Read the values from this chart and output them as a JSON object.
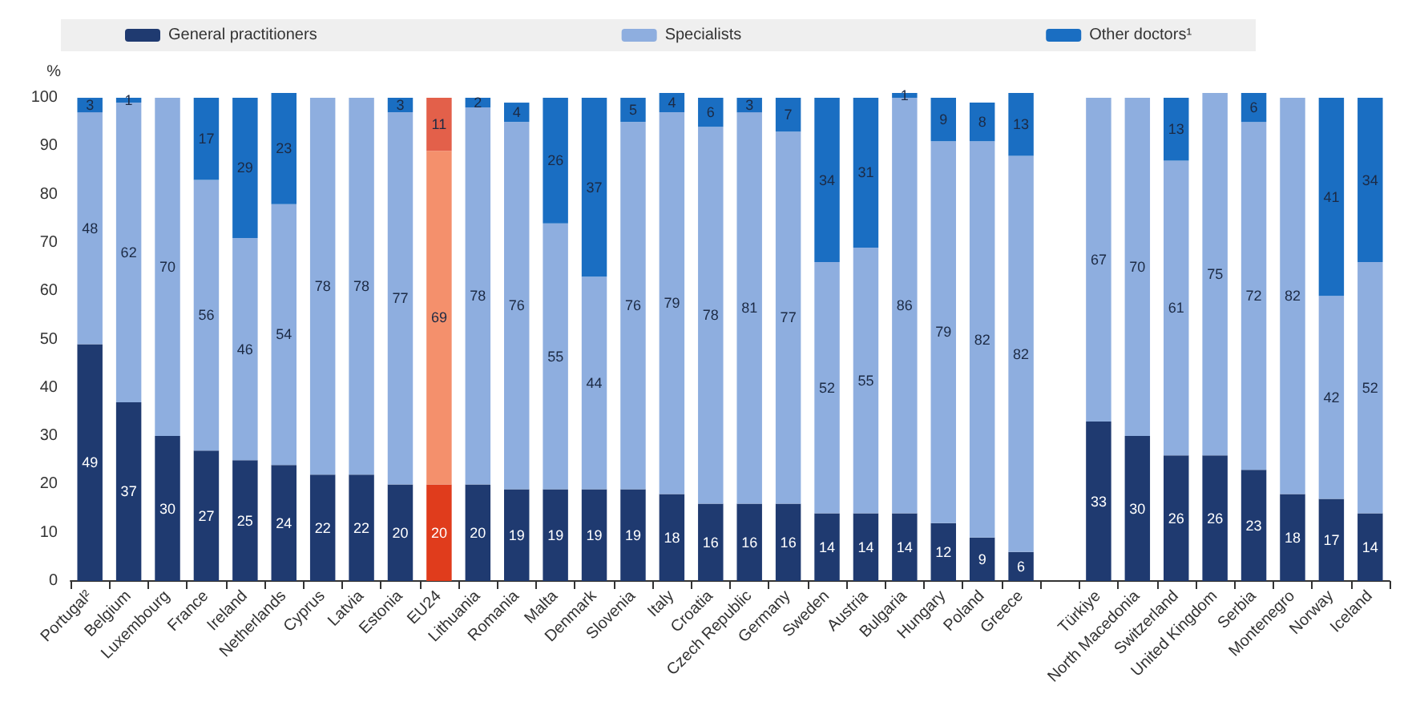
{
  "chart_data": {
    "type": "bar",
    "stacked": true,
    "ylabel": "%",
    "ylim": [
      0,
      101
    ],
    "yticks": [
      0,
      10,
      20,
      30,
      40,
      50,
      60,
      70,
      80,
      90,
      100
    ],
    "grid": false,
    "legend": "top",
    "data_labels": true,
    "categories": [
      "Portugal²",
      "Belgium",
      "Luxembourg",
      "France",
      "Ireland",
      "Netherlands",
      "Cyprus",
      "Latvia",
      "Estonia",
      "EU24",
      "Lithuania",
      "Romania",
      "Malta",
      "Denmark",
      "Slovenia",
      "Italy",
      "Croatia",
      "Czech Republic",
      "Germany",
      "Sweden",
      "Austria",
      "Bulgaria",
      "Hungary",
      "Poland",
      "Greece",
      null,
      "Türkiye",
      "North Macedonia",
      "Switzerland",
      "United Kingdom",
      "Serbia",
      "Montenegro",
      "Norway",
      "Iceland"
    ],
    "series": [
      {
        "name": "General practitioners",
        "color": "#1f3a70",
        "colors": [
          "#1f3a70",
          "#1f3a70",
          "#1f3a70",
          "#1f3a70",
          "#1f3a70",
          "#1f3a70",
          "#1f3a70",
          "#1f3a70",
          "#1f3a70",
          "#e03c1c",
          "#1f3a70",
          "#1f3a70",
          "#1f3a70",
          "#1f3a70",
          "#1f3a70",
          "#1f3a70",
          "#1f3a70",
          "#1f3a70",
          "#1f3a70",
          "#1f3a70",
          "#1f3a70",
          "#1f3a70",
          "#1f3a70",
          "#1f3a70",
          "#1f3a70",
          "#1f3a70",
          "#1f3a70",
          "#1f3a70",
          "#1f3a70",
          "#1f3a70",
          "#1f3a70",
          "#1f3a70",
          "#1f3a70",
          "#1f3a70"
        ],
        "values": [
          49,
          37,
          30,
          27,
          25,
          24,
          22,
          22,
          20,
          20,
          20,
          19,
          19,
          19,
          19,
          18,
          16,
          16,
          16,
          14,
          14,
          14,
          12,
          9,
          6,
          null,
          33,
          30,
          26,
          26,
          23,
          18,
          17,
          14
        ]
      },
      {
        "name": "Specialists",
        "color": "#8eaedf",
        "colors": [
          "#8eaedf",
          "#8eaedf",
          "#8eaedf",
          "#8eaedf",
          "#8eaedf",
          "#8eaedf",
          "#8eaedf",
          "#8eaedf",
          "#8eaedf",
          "#f4906c",
          "#8eaedf",
          "#8eaedf",
          "#8eaedf",
          "#8eaedf",
          "#8eaedf",
          "#8eaedf",
          "#8eaedf",
          "#8eaedf",
          "#8eaedf",
          "#8eaedf",
          "#8eaedf",
          "#8eaedf",
          "#8eaedf",
          "#8eaedf",
          "#8eaedf",
          "#8eaedf",
          "#8eaedf",
          "#8eaedf",
          "#8eaedf",
          "#8eaedf",
          "#8eaedf",
          "#8eaedf",
          "#8eaedf",
          "#8eaedf"
        ],
        "values": [
          48,
          62,
          70,
          56,
          46,
          54,
          78,
          78,
          77,
          69,
          78,
          76,
          55,
          44,
          76,
          79,
          78,
          81,
          77,
          52,
          55,
          86,
          79,
          82,
          82,
          null,
          67,
          70,
          61,
          75,
          72,
          82,
          42,
          52
        ]
      },
      {
        "name": "Other doctors¹",
        "color": "#1a6ec2",
        "colors": [
          "#1a6ec2",
          "#1a6ec2",
          "#1a6ec2",
          "#1a6ec2",
          "#1a6ec2",
          "#1a6ec2",
          "#1a6ec2",
          "#1a6ec2",
          "#1a6ec2",
          "#e3604a",
          "#1a6ec2",
          "#1a6ec2",
          "#1a6ec2",
          "#1a6ec2",
          "#1a6ec2",
          "#1a6ec2",
          "#1a6ec2",
          "#1a6ec2",
          "#1a6ec2",
          "#1a6ec2",
          "#1a6ec2",
          "#1a6ec2",
          "#1a6ec2",
          "#1a6ec2",
          "#1a6ec2",
          "#1a6ec2",
          "#1a6ec2",
          "#1a6ec2",
          "#1a6ec2",
          "#1a6ec2",
          "#1a6ec2",
          "#1a6ec2",
          "#1a6ec2",
          "#1a6ec2"
        ],
        "values": [
          3,
          1,
          null,
          17,
          29,
          23,
          null,
          null,
          3,
          11,
          2,
          4,
          26,
          37,
          5,
          4,
          6,
          3,
          7,
          34,
          31,
          1,
          9,
          8,
          13,
          null,
          null,
          null,
          13,
          null,
          6,
          null,
          41,
          34
        ]
      }
    ]
  }
}
